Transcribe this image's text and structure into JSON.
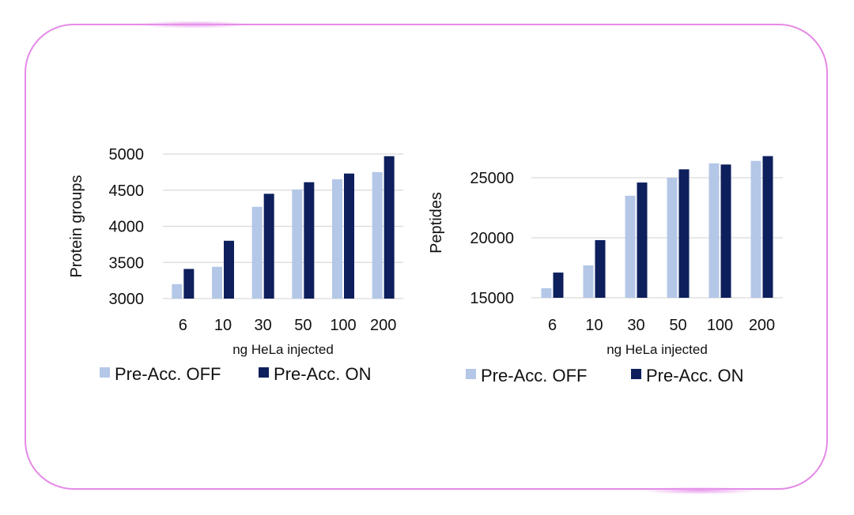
{
  "colors": {
    "off": "#b4c7e7",
    "on": "#0d1f5c",
    "grid": "#d9d9d9",
    "border": "#e48ae6"
  },
  "chart_data": [
    {
      "type": "bar",
      "categories": [
        "6",
        "10",
        "30",
        "50",
        "100",
        "200"
      ],
      "series": [
        {
          "name": "Pre-Acc. OFF",
          "values": [
            3200,
            3440,
            4270,
            4510,
            4650,
            4750
          ]
        },
        {
          "name": "Pre-Acc. ON",
          "values": [
            3410,
            3800,
            4450,
            4610,
            4730,
            4970
          ]
        }
      ],
      "xlabel": "ng HeLa injected",
      "ylabel": "Protein groups",
      "ylim": [
        3000,
        5000
      ],
      "yticks": [
        "3000",
        "3500",
        "4000",
        "4500",
        "5000"
      ],
      "ytick_values": [
        3000,
        3500,
        4000,
        4500,
        5000
      ],
      "legend": [
        "Pre-Acc. OFF",
        "Pre-Acc. ON"
      ],
      "legend_position": "bottom"
    },
    {
      "type": "bar",
      "categories": [
        "6",
        "10",
        "30",
        "50",
        "100",
        "200"
      ],
      "series": [
        {
          "name": "Pre-Acc. OFF",
          "values": [
            15800,
            17700,
            23500,
            25000,
            26200,
            26400
          ]
        },
        {
          "name": "Pre-Acc. ON",
          "values": [
            17100,
            19800,
            24600,
            25700,
            26100,
            26800
          ]
        }
      ],
      "xlabel": "ng HeLa injected",
      "ylabel": "Peptides",
      "ylim": [
        15000,
        27500
      ],
      "yticks": [
        "15000",
        "20000",
        "25000"
      ],
      "ytick_values": [
        15000,
        20000,
        25000
      ],
      "legend": [
        "Pre-Acc. OFF",
        "Pre-Acc. ON"
      ],
      "legend_position": "bottom"
    }
  ]
}
